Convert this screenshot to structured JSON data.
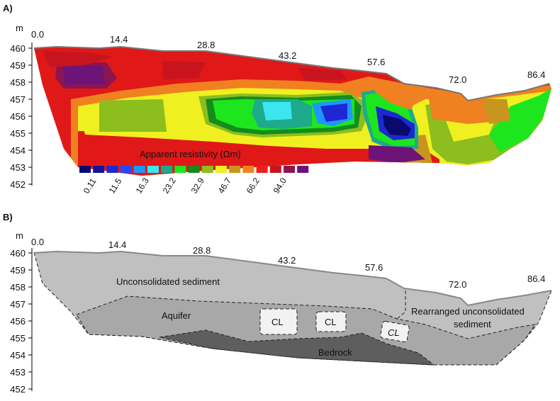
{
  "panelA": {
    "label": "A)",
    "unit": "m",
    "elevation_ticks": [
      "460",
      "459",
      "458",
      "457",
      "456",
      "455",
      "454",
      "453",
      "452"
    ],
    "distance_ticks": [
      "0.0",
      "14.4",
      "28.8",
      "43.2",
      "57.6",
      "72.0",
      "86.4"
    ],
    "legend": {
      "title": "Apparent resistivity (Ωm)",
      "tick_labels": [
        "0.11",
        "11.5",
        "16.3",
        "23.2",
        "32.9",
        "46.7",
        "66.2",
        "94.0"
      ],
      "colors": [
        "#0a0a6e",
        "#1414a0",
        "#1e28d2",
        "#2846ff",
        "#1e96ff",
        "#3ce6f0",
        "#1eaa8c",
        "#1ee61e",
        "#148c1e",
        "#8cbe1e",
        "#f0f01e",
        "#c8961e",
        "#f0821e",
        "#f01e1e",
        "#c8141e",
        "#8c1450",
        "#6e1478"
      ]
    }
  },
  "panelB": {
    "label": "B)",
    "unit": "m",
    "elevation_ticks": [
      "460",
      "459",
      "458",
      "457",
      "456",
      "455",
      "454",
      "453",
      "452"
    ],
    "distance_ticks": [
      "0.0",
      "14.4",
      "28.8",
      "43.2",
      "57.6",
      "72.0",
      "86.4"
    ],
    "units": {
      "unconsolidated": "Unconsolidated sediment",
      "aquifer": "Aquifer",
      "rearranged_line1": "Rearranged unconsolidated",
      "rearranged_line2": "sediment",
      "bedrock": "Bedrock",
      "cl1": "CL",
      "cl2": "CL",
      "cl3": "CL"
    }
  }
}
